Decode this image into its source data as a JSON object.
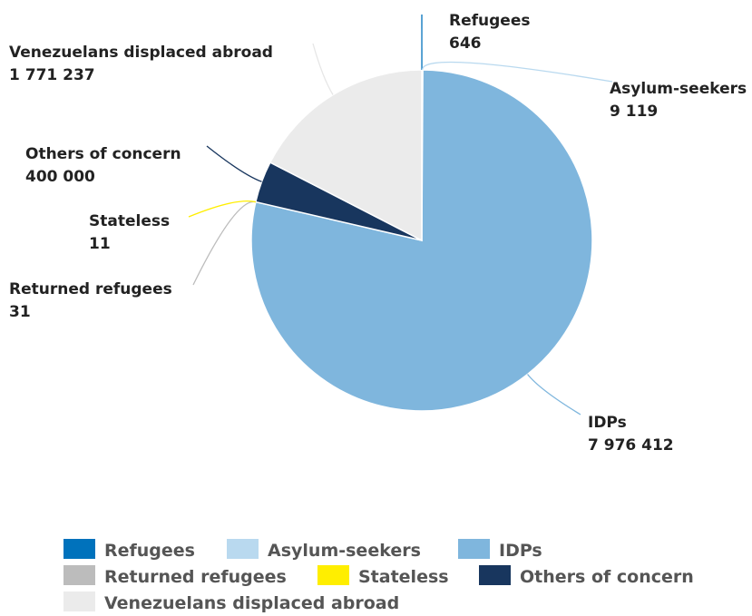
{
  "chart_data": {
    "type": "pie",
    "categories": [
      "Refugees",
      "Asylum-seekers",
      "IDPs",
      "Returned refugees",
      "Stateless",
      "Others of concern",
      "Venezuelans displaced abroad"
    ],
    "values": [
      646,
      9119,
      7976412,
      31,
      11,
      400000,
      1771237
    ],
    "value_labels": [
      "646",
      "9 119",
      "7 976 412",
      "31",
      "11",
      "400 000",
      "1 771 237"
    ],
    "colors": [
      "#0072bc",
      "#b9d9ef",
      "#7fb6dd",
      "#bcbcbc",
      "#ffee00",
      "#18365e",
      "#ebebeb"
    ],
    "legend": {
      "position": "bottom",
      "items": [
        "Refugees",
        "Asylum-seekers",
        "IDPs",
        "Returned refugees",
        "Stateless",
        "Others of concern",
        "Venezuelans displaced abroad"
      ]
    }
  }
}
